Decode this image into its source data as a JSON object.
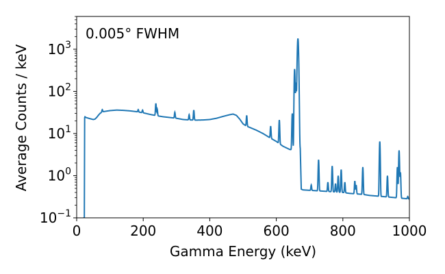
{
  "chart_data": {
    "type": "line",
    "title": "",
    "annotation": "0.005° FWHM",
    "xlabel": "Gamma Energy (keV)",
    "ylabel": "Average Counts / keV",
    "xlim": [
      0,
      1000
    ],
    "ylim": [
      0.1,
      6000
    ],
    "yscale": "log",
    "grid": false,
    "legend": "none",
    "color": "#1f77b4",
    "x_ticks": [
      0,
      200,
      400,
      600,
      800,
      1000
    ],
    "x_tick_labels": [
      "0",
      "200",
      "400",
      "600",
      "800",
      "1000"
    ],
    "y_ticks": [
      0.1,
      1,
      10,
      100,
      1000
    ],
    "y_tick_labels": [
      {
        "base": "10",
        "exp": "−1"
      },
      {
        "base": "10",
        "exp": "0"
      },
      {
        "base": "10",
        "exp": "1"
      },
      {
        "base": "10",
        "exp": "2"
      },
      {
        "base": "10",
        "exp": "3"
      }
    ],
    "series": [
      {
        "x": [
          20,
          23,
          24,
          25,
          28,
          32,
          36,
          40,
          45,
          50,
          55,
          60,
          65,
          70,
          75,
          80,
          90,
          100,
          120,
          140,
          160,
          180,
          200,
          220,
          240,
          260,
          280,
          300,
          320,
          340,
          360,
          380,
          400,
          420,
          440,
          460,
          470,
          480,
          490,
          500,
          510,
          520,
          540,
          560,
          580,
          600,
          620,
          640,
          655,
          662,
          663,
          668,
          672,
          675,
          680,
          700,
          720,
          740,
          760,
          780,
          800,
          820,
          840,
          860,
          880,
          900,
          920,
          940,
          960,
          980,
          1000
        ],
        "y": [
          0.1,
          0.1,
          24,
          25,
          24,
          23.5,
          23,
          22.5,
          22,
          21.5,
          22,
          24,
          27,
          30,
          32,
          33,
          34,
          35,
          36,
          35.5,
          34.5,
          33,
          31,
          28.5,
          26.5,
          25,
          24,
          23,
          21.5,
          21,
          20.8,
          21,
          21.5,
          23,
          25.5,
          28,
          29,
          27,
          22,
          17,
          15,
          14,
          12,
          10,
          8,
          6.5,
          5,
          4.2,
          4,
          4.2,
          4.5,
          4.4,
          4.3,
          0.48,
          0.46,
          0.45,
          0.44,
          0.43,
          0.42,
          0.41,
          0.4,
          0.38,
          0.37,
          0.36,
          0.34,
          0.33,
          0.32,
          0.31,
          0.3,
          0.29,
          0.28
        ]
      }
    ],
    "peaks": [
      {
        "x": 77,
        "y": 37
      },
      {
        "x": 185,
        "y": 37
      },
      {
        "x": 198,
        "y": 36
      },
      {
        "x": 238,
        "y": 52
      },
      {
        "x": 242,
        "y": 38
      },
      {
        "x": 295,
        "y": 32
      },
      {
        "x": 338,
        "y": 28
      },
      {
        "x": 352,
        "y": 36
      },
      {
        "x": 511,
        "y": 27
      },
      {
        "x": 583,
        "y": 15
      },
      {
        "x": 609,
        "y": 21
      },
      {
        "x": 648,
        "y": 30
      },
      {
        "x": 655,
        "y": 340
      },
      {
        "x": 659,
        "y": 160
      },
      {
        "x": 665,
        "y": 1800
      },
      {
        "x": 705,
        "y": 0.6
      },
      {
        "x": 727,
        "y": 2.4
      },
      {
        "x": 755,
        "y": 0.7
      },
      {
        "x": 768,
        "y": 1.7
      },
      {
        "x": 778,
        "y": 0.65
      },
      {
        "x": 786,
        "y": 1.0
      },
      {
        "x": 795,
        "y": 1.4
      },
      {
        "x": 806,
        "y": 0.7
      },
      {
        "x": 836,
        "y": 0.75
      },
      {
        "x": 840,
        "y": 0.6
      },
      {
        "x": 860,
        "y": 1.6
      },
      {
        "x": 911,
        "y": 6.5
      },
      {
        "x": 934,
        "y": 1.0
      },
      {
        "x": 964,
        "y": 1.6
      },
      {
        "x": 969,
        "y": 4.0
      },
      {
        "x": 973,
        "y": 1.2
      },
      {
        "x": 995,
        "y": 0.32
      }
    ]
  }
}
